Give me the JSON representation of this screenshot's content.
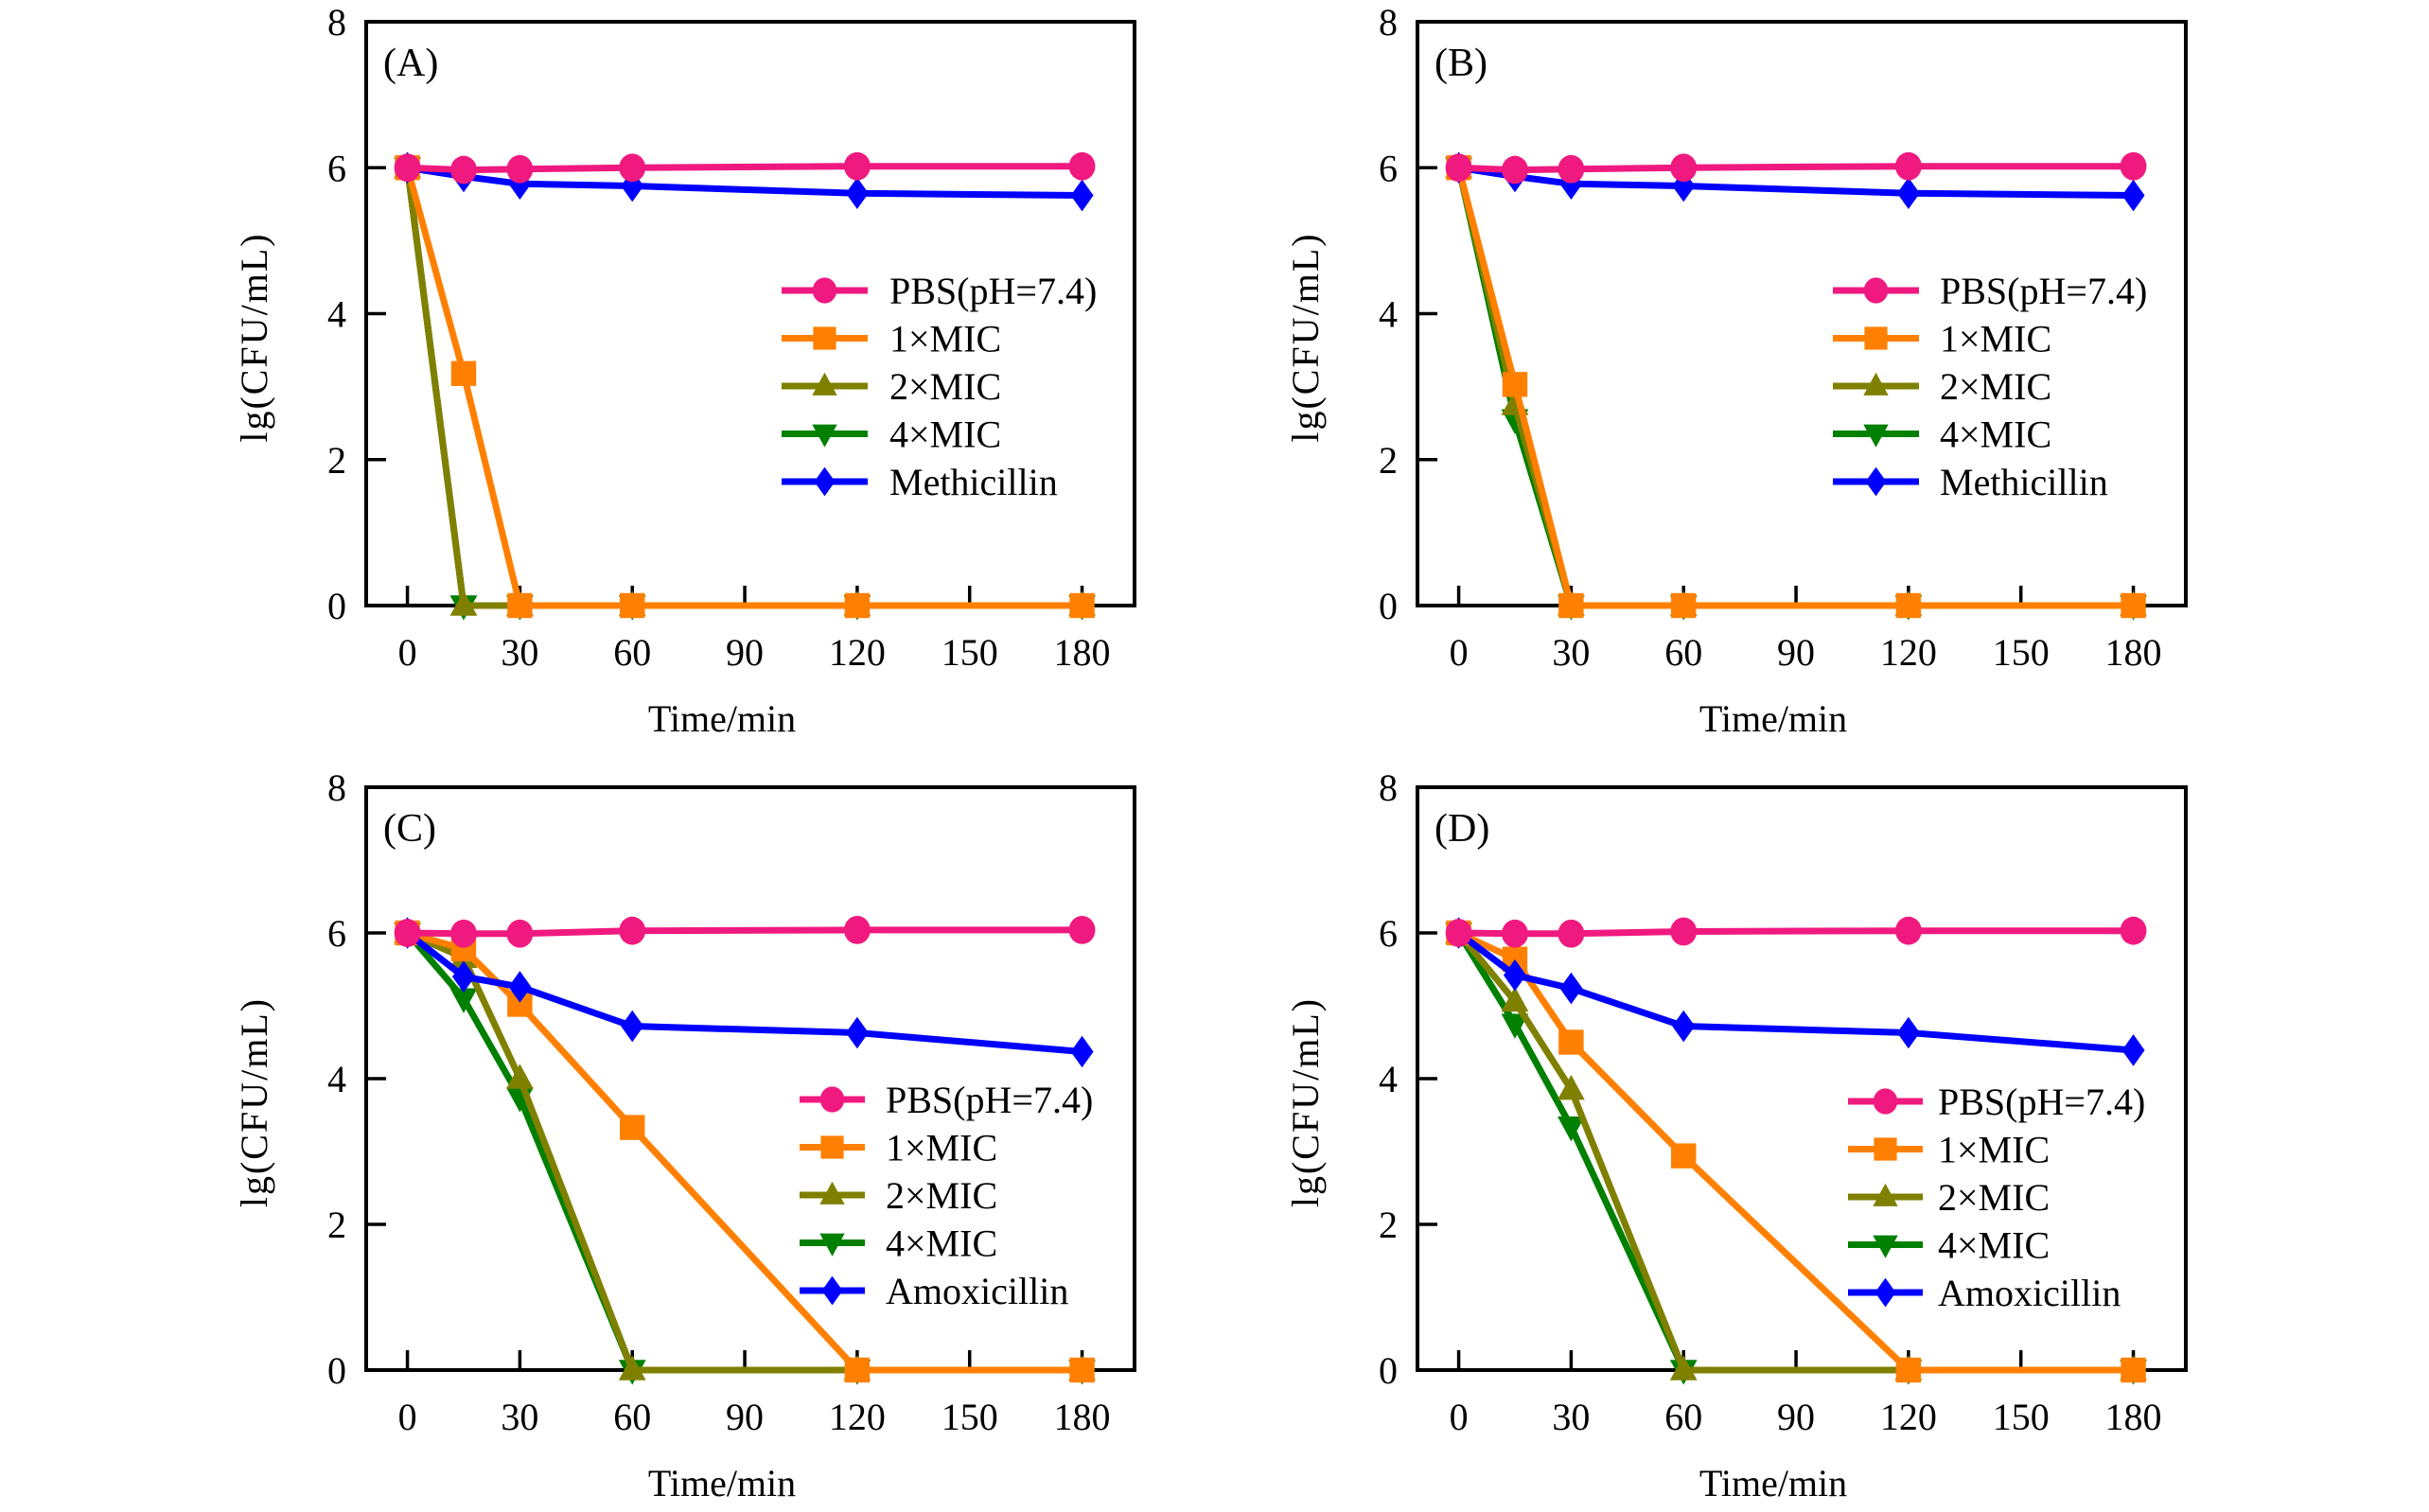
{
  "chart_data": [
    {
      "type": "line",
      "panel": "(A)",
      "xlabel": "Time/min",
      "ylabel": "lg(CFU/mL)",
      "xlim": [
        -11,
        194
      ],
      "ylim": [
        0,
        8
      ],
      "xticks": [
        0,
        30,
        60,
        90,
        120,
        150,
        180
      ],
      "yticks": [
        0,
        2,
        4,
        6,
        8
      ],
      "legend_position": "center-right",
      "grid": false,
      "x": [
        0,
        15,
        30,
        60,
        120,
        180
      ],
      "series": [
        {
          "name": "PBS(pH=7.4)",
          "color": "#F0197F",
          "marker": "circle",
          "values": [
            6.0,
            5.97,
            5.98,
            6.0,
            6.02,
            6.02
          ]
        },
        {
          "name": "1×MIC",
          "color": "#FF8000",
          "marker": "square",
          "values": [
            6.0,
            3.18,
            0,
            0,
            0,
            0
          ]
        },
        {
          "name": "2×MIC",
          "color": "#808000",
          "marker": "triangle-up",
          "values": [
            6.0,
            0,
            0,
            0,
            0,
            0
          ]
        },
        {
          "name": "4×MIC",
          "color": "#008000",
          "marker": "triangle-down",
          "values": [
            6.0,
            0,
            0,
            0,
            0,
            0
          ]
        },
        {
          "name": "Methicillin",
          "color": "#0000FF",
          "marker": "diamond",
          "values": [
            6.0,
            5.88,
            5.78,
            5.75,
            5.65,
            5.62
          ]
        }
      ]
    },
    {
      "type": "line",
      "panel": "(B)",
      "xlabel": "Time/min",
      "ylabel": "lg(CFU/mL)",
      "xlim": [
        -11,
        194
      ],
      "ylim": [
        0,
        8
      ],
      "xticks": [
        0,
        30,
        60,
        90,
        120,
        150,
        180
      ],
      "yticks": [
        0,
        2,
        4,
        6,
        8
      ],
      "legend_position": "center-right",
      "grid": false,
      "x": [
        0,
        15,
        30,
        60,
        120,
        180
      ],
      "series": [
        {
          "name": "PBS(pH=7.4)",
          "color": "#F0197F",
          "marker": "circle",
          "values": [
            6.0,
            5.97,
            5.98,
            6.0,
            6.02,
            6.02
          ]
        },
        {
          "name": "1×MIC",
          "color": "#FF8000",
          "marker": "square",
          "values": [
            6.0,
            3.03,
            0,
            0,
            0,
            0
          ]
        },
        {
          "name": "2×MIC",
          "color": "#808000",
          "marker": "triangle-up",
          "values": [
            6.0,
            2.75,
            0,
            0,
            0,
            0
          ]
        },
        {
          "name": "4×MIC",
          "color": "#008000",
          "marker": "triangle-down",
          "values": [
            6.0,
            2.55,
            0,
            0,
            0,
            0
          ]
        },
        {
          "name": "Methicillin",
          "color": "#0000FF",
          "marker": "diamond",
          "values": [
            6.0,
            5.88,
            5.78,
            5.75,
            5.65,
            5.62
          ]
        }
      ]
    },
    {
      "type": "line",
      "panel": "(C)",
      "xlabel": "Time/min",
      "ylabel": "lg(CFU/mL)",
      "xlim": [
        -11,
        194
      ],
      "ylim": [
        0,
        8
      ],
      "xticks": [
        0,
        30,
        60,
        90,
        120,
        150,
        180
      ],
      "yticks": [
        0,
        2,
        4,
        6,
        8
      ],
      "legend_position": "lower-right",
      "grid": false,
      "x": [
        0,
        15,
        30,
        60,
        120,
        180
      ],
      "series": [
        {
          "name": "PBS(pH=7.4)",
          "color": "#F0197F",
          "marker": "circle",
          "values": [
            6.0,
            5.99,
            5.99,
            6.03,
            6.04,
            6.04
          ]
        },
        {
          "name": "1×MIC",
          "color": "#FF8000",
          "marker": "square",
          "values": [
            6.0,
            5.78,
            5.02,
            3.33,
            0,
            0
          ]
        },
        {
          "name": "2×MIC",
          "color": "#808000",
          "marker": "triangle-up",
          "values": [
            6.0,
            5.66,
            4.0,
            0,
            0,
            0
          ]
        },
        {
          "name": "4×MIC",
          "color": "#008000",
          "marker": "triangle-down",
          "values": [
            6.0,
            5.1,
            3.74,
            0,
            0,
            0
          ]
        },
        {
          "name": "Amoxicillin",
          "color": "#0000FF",
          "marker": "diamond",
          "values": [
            6.0,
            5.4,
            5.26,
            4.72,
            4.63,
            4.37
          ]
        }
      ]
    },
    {
      "type": "line",
      "panel": "(D)",
      "xlabel": "Time/min",
      "ylabel": "lg(CFU/mL)",
      "xlim": [
        -11,
        194
      ],
      "ylim": [
        0,
        8
      ],
      "xticks": [
        0,
        30,
        60,
        90,
        120,
        150,
        180
      ],
      "yticks": [
        0,
        2,
        4,
        6,
        8
      ],
      "legend_position": "lower-right",
      "grid": false,
      "x": [
        0,
        15,
        30,
        60,
        120,
        180
      ],
      "series": [
        {
          "name": "PBS(pH=7.4)",
          "color": "#F0197F",
          "marker": "circle",
          "values": [
            6.0,
            5.99,
            5.99,
            6.02,
            6.03,
            6.03
          ]
        },
        {
          "name": "1×MIC",
          "color": "#FF8000",
          "marker": "square",
          "values": [
            6.0,
            5.64,
            4.5,
            2.94,
            0,
            0
          ]
        },
        {
          "name": "2×MIC",
          "color": "#808000",
          "marker": "triangle-up",
          "values": [
            6.0,
            5.06,
            3.85,
            0,
            0,
            0
          ]
        },
        {
          "name": "4×MIC",
          "color": "#008000",
          "marker": "triangle-down",
          "values": [
            6.0,
            4.75,
            3.34,
            0,
            0,
            0
          ]
        },
        {
          "name": "Amoxicillin",
          "color": "#0000FF",
          "marker": "diamond",
          "values": [
            6.0,
            5.42,
            5.24,
            4.72,
            4.63,
            4.39
          ]
        }
      ]
    }
  ]
}
